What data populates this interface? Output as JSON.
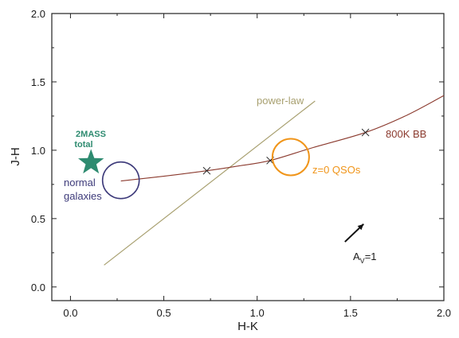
{
  "chart_data": {
    "type": "scatter",
    "title": "",
    "xlabel": "H-K",
    "ylabel": "J-H",
    "xlim": [
      -0.1,
      2.0
    ],
    "ylim": [
      -0.1,
      2.0
    ],
    "xticks": [
      "0.0",
      "0.5",
      "1.0",
      "1.5",
      "2.0"
    ],
    "yticks": [
      "0.0",
      "0.5",
      "1.0",
      "1.5",
      "2.0"
    ],
    "grid": false,
    "series": [
      {
        "name": "800K BB",
        "kind": "curve",
        "color": "#8b3a2e",
        "x": [
          0.27,
          0.5,
          0.73,
          0.9,
          1.07,
          1.3,
          1.58,
          1.8,
          2.0
        ],
        "y": [
          0.775,
          0.81,
          0.85,
          0.885,
          0.925,
          1.02,
          1.13,
          1.255,
          1.4
        ],
        "markers": [
          {
            "x": 0.73,
            "y": 0.85
          },
          {
            "x": 1.07,
            "y": 0.925
          },
          {
            "x": 1.58,
            "y": 1.13
          }
        ]
      },
      {
        "name": "power-law",
        "kind": "line",
        "color": "#a8a070",
        "x": [
          0.18,
          1.31
        ],
        "y": [
          0.16,
          1.36
        ]
      }
    ],
    "regions": [
      {
        "label": "normal galaxies",
        "color": "#3d3a7a",
        "x": 0.27,
        "y": 0.78
      },
      {
        "label": "z=0 QSOs",
        "color": "#f0951a",
        "x": 1.18,
        "y": 0.95
      }
    ],
    "points": [
      {
        "label_lines": [
          "2MASS",
          "total"
        ],
        "color": "#2e8b70",
        "marker": "star",
        "x": 0.11,
        "y": 0.91
      }
    ],
    "annotations": [
      {
        "text": "power-law",
        "color": "#a8a070"
      },
      {
        "text": "800K BB",
        "color": "#8b3a2e"
      },
      {
        "text": "z=0 QSOs",
        "color": "#f0951a"
      },
      {
        "text_main": "A",
        "subscript": "V",
        "text_tail": "=1",
        "color": "#1a1a1a",
        "vector": {
          "x0": 1.47,
          "y0": 0.33,
          "x1": 1.57,
          "y1": 0.46
        }
      }
    ]
  }
}
